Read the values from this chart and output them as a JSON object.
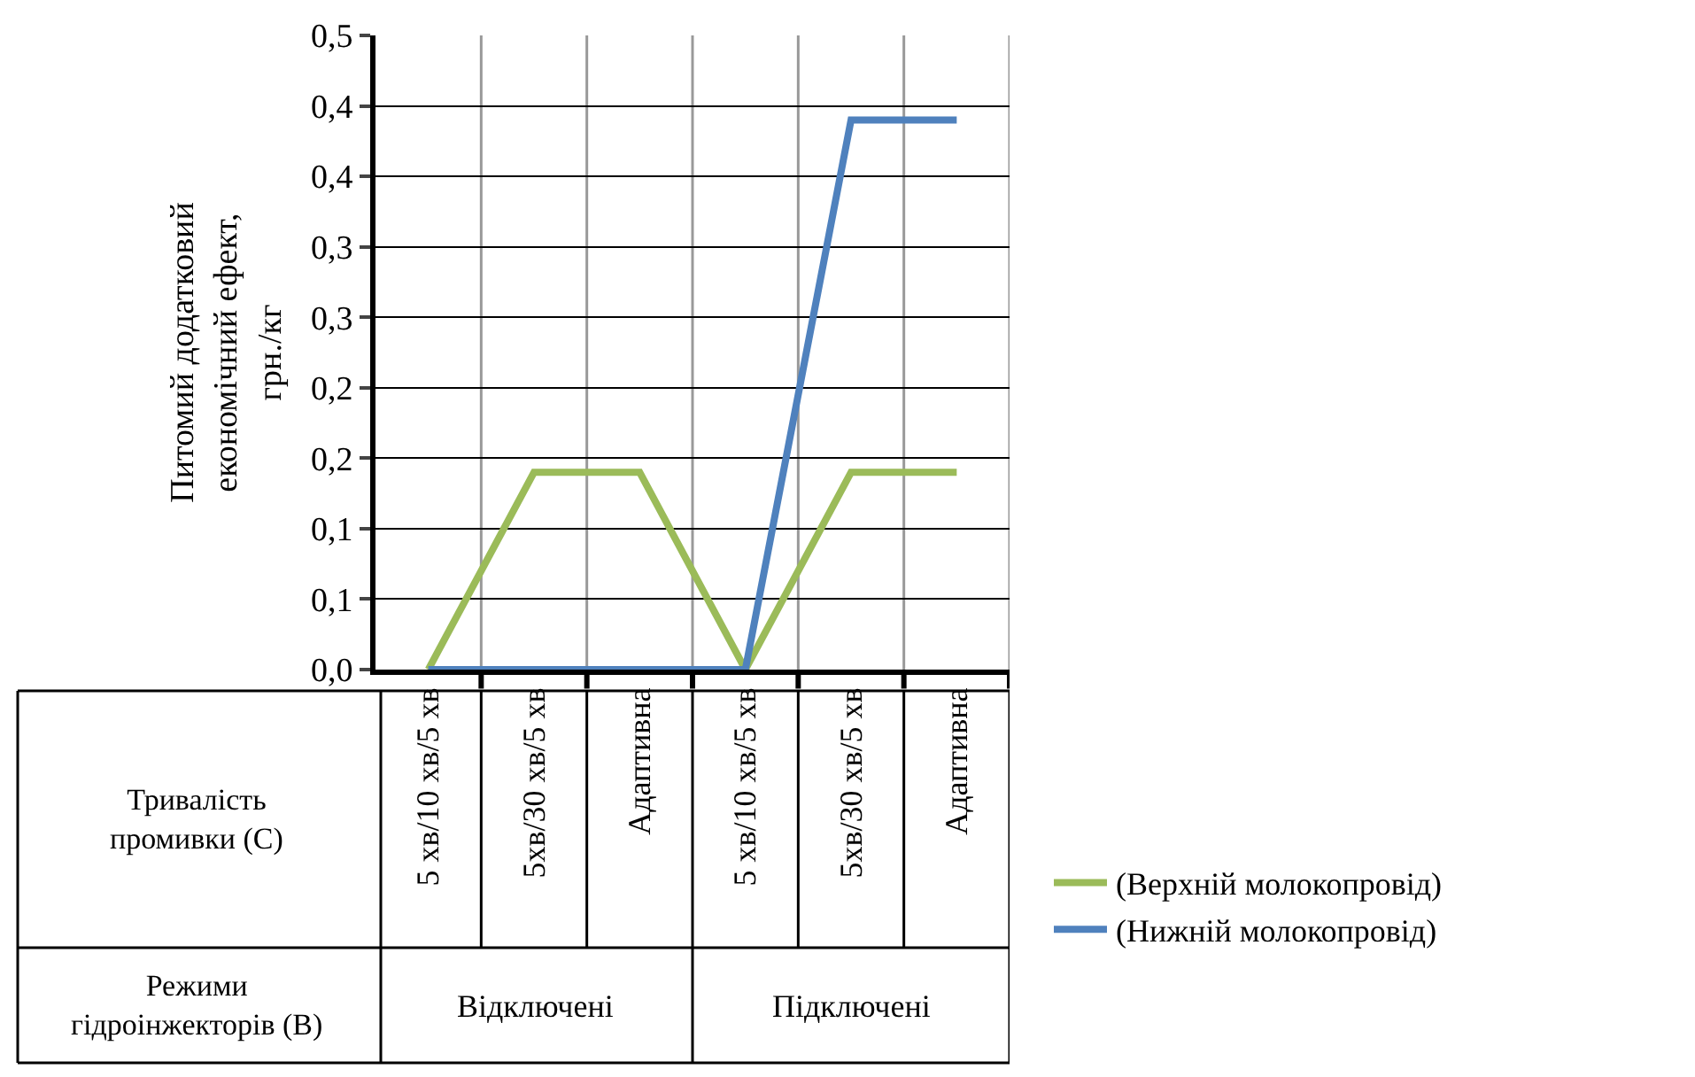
{
  "chart_data": {
    "type": "line",
    "ylabel": "Питомий додатковий економічний ефект, грн./кг",
    "categories": [
      "5 хв/10 хв/5 хв",
      "5хв/30 хв/5 хв",
      "Адаптивна",
      "5 хв/10 хв/5 хв",
      "5хв/30 хв/5 хв",
      "Адаптивна"
    ],
    "series": [
      {
        "name": "(Верхній молокопровід)",
        "color": "#9bbb59",
        "values": [
          0,
          0.14,
          0.14,
          0,
          0.14,
          0.14
        ]
      },
      {
        "name": "(Нижній молокопровід)",
        "color": "#4f81bd",
        "values": [
          0,
          0,
          0,
          0,
          0.39,
          0.39
        ]
      }
    ],
    "ylim": [
      0,
      0.45
    ],
    "yticks": [
      {
        "value": 0,
        "label": "0,0"
      },
      {
        "value": 0.05,
        "label": "0,1"
      },
      {
        "value": 0.1,
        "label": "0,1"
      },
      {
        "value": 0.15,
        "label": "0,2"
      },
      {
        "value": 0.2,
        "label": "0,2"
      },
      {
        "value": 0.25,
        "label": "0,3"
      },
      {
        "value": 0.3,
        "label": "0,3"
      },
      {
        "value": 0.35,
        "label": "0,4"
      },
      {
        "value": 0.4,
        "label": "0,4"
      },
      {
        "value": 0.45,
        "label": "0,5"
      }
    ],
    "grid": true,
    "legend": "bottom right",
    "marker": "none",
    "line_style": "solid",
    "annotations": [
      "Тривалість промивки (С)",
      "Режими гідроінжекторів (В)",
      "Відключені",
      "Підключені"
    ]
  }
}
